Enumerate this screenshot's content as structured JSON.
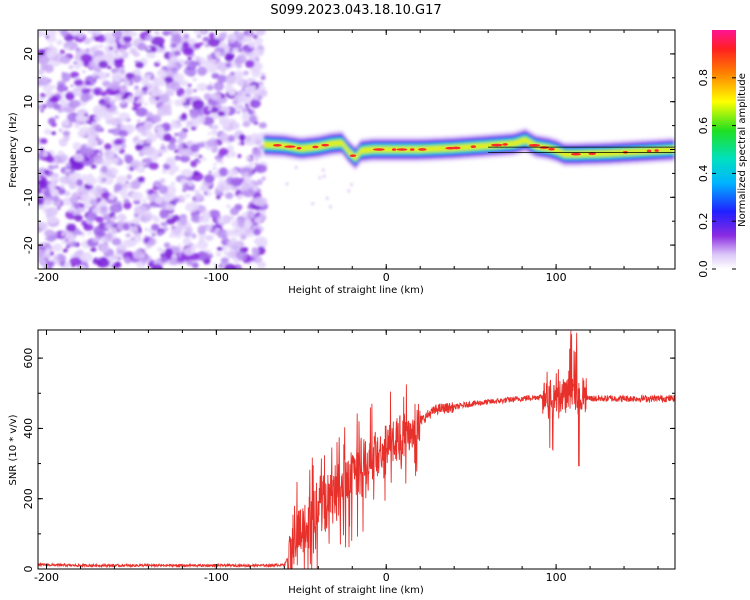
{
  "title": "S099.2023.043.18.10.G17",
  "colors": {
    "snr_line": "#e8302b",
    "noise_purple": "#8a2be2",
    "band_red": "#ff2020",
    "band_green": "#20e020",
    "band_blue": "#3030ff"
  },
  "chart_data": [
    {
      "type": "heatmap",
      "name": "spectrogram",
      "xlabel": "Height of straight line (km)",
      "ylabel": "Frequency (Hz)",
      "xlim": [
        -205,
        170
      ],
      "ylim": [
        -25,
        25
      ],
      "xticks": [
        -200,
        -100,
        0,
        100
      ],
      "yticks": [
        -20,
        -10,
        0,
        10,
        20
      ],
      "xtick_labels": [
        "-200",
        "-100",
        "0",
        "100"
      ],
      "ytick_labels": [
        "-20",
        "-10",
        "0",
        "10",
        "20"
      ],
      "noise_region_x": [
        -205,
        -72
      ],
      "ridge": {
        "x": [
          -72,
          -60,
          -50,
          -40,
          -32,
          -26,
          -22,
          -18,
          -15,
          -8,
          0,
          20,
          40,
          60,
          75,
          82,
          88,
          95,
          100,
          105,
          110,
          130,
          150,
          170
        ],
        "freq": [
          1.0,
          0.8,
          0.2,
          0.6,
          1.2,
          1.4,
          -0.5,
          -1.8,
          -0.3,
          0.0,
          0.0,
          0.0,
          0.3,
          0.8,
          1.2,
          2.0,
          0.7,
          0.3,
          -0.2,
          -1.0,
          -1.0,
          -0.8,
          -0.4,
          0.0
        ]
      },
      "colorbar": {
        "label": "Normalized spectral amplitude",
        "range": [
          0,
          1
        ],
        "ticks": [
          0.0,
          0.2,
          0.4,
          0.6,
          0.8
        ],
        "tick_labels": [
          "0.0",
          "0.2",
          "0.4",
          "0.6",
          "0.8"
        ]
      }
    },
    {
      "type": "line",
      "name": "snr",
      "xlabel": "Height of straight line (km)",
      "ylabel": "SNR (10 * v/v)",
      "xlim": [
        -205,
        170
      ],
      "ylim": [
        0,
        680
      ],
      "xticks": [
        -200,
        -100,
        0,
        100
      ],
      "yticks": [
        0,
        200,
        400,
        600
      ],
      "xtick_labels": [
        "-200",
        "-100",
        "0",
        "100"
      ],
      "ytick_labels": [
        "0",
        "200",
        "400",
        "600"
      ],
      "series": [
        {
          "name": "SNR",
          "x": [
            -205,
            -180,
            -150,
            -100,
            -70,
            -60,
            -55,
            -50,
            -45,
            -40,
            -35,
            -30,
            -25,
            -20,
            -15,
            -10,
            -5,
            0,
            5,
            10,
            15,
            20,
            25,
            30,
            40,
            50,
            60,
            70,
            80,
            90,
            100,
            105,
            110,
            115,
            120,
            140,
            170
          ],
          "y": [
            12,
            10,
            10,
            10,
            10,
            12,
            60,
            110,
            140,
            170,
            195,
            215,
            245,
            270,
            290,
            310,
            330,
            350,
            370,
            385,
            400,
            420,
            440,
            455,
            460,
            470,
            475,
            480,
            485,
            490,
            495,
            495,
            500,
            490,
            485,
            485,
            485
          ]
        }
      ]
    }
  ]
}
